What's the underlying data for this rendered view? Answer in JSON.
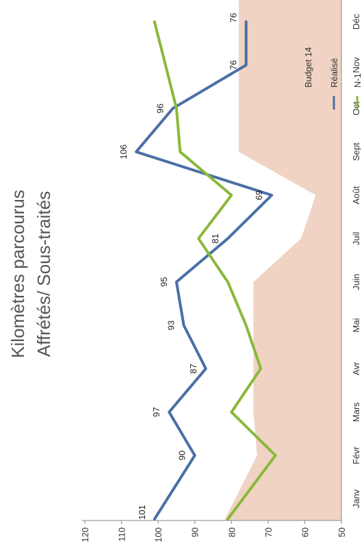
{
  "chart_data": {
    "type": "line",
    "title_lines": [
      "Kilomètres parcourus",
      "Affrétés/ Sous-traités"
    ],
    "categories": [
      "Janv",
      "Févr",
      "Mars",
      "Avr",
      "Mai",
      "Juin",
      "Juil",
      "Août",
      "Sept",
      "Oct",
      "Nov",
      "Déc"
    ],
    "ylim": [
      50,
      120
    ],
    "yticks": [
      50,
      60,
      70,
      80,
      90,
      100,
      110,
      120
    ],
    "area_series": {
      "name": "Budget 14",
      "color": "#f0d3c2",
      "values": [
        82,
        73,
        74,
        74,
        74,
        74,
        61,
        57,
        78,
        78,
        78,
        78
      ]
    },
    "series": [
      {
        "name": "Réalisé",
        "color": "#4a6fa5",
        "values": [
          101,
          90,
          97,
          87,
          93,
          95,
          81,
          69,
          106,
          96,
          76,
          76
        ],
        "labels": [
          "101",
          "90",
          "97",
          "87",
          "93",
          "95",
          "81",
          "69",
          "106",
          "96",
          "76",
          "76"
        ]
      },
      {
        "name": "N-1",
        "color": "#8ab83a",
        "values": [
          81,
          68,
          80,
          72,
          76,
          81,
          89,
          80,
          94,
          95,
          98,
          101
        ]
      }
    ],
    "legend_position": "top-right",
    "grid": false
  }
}
